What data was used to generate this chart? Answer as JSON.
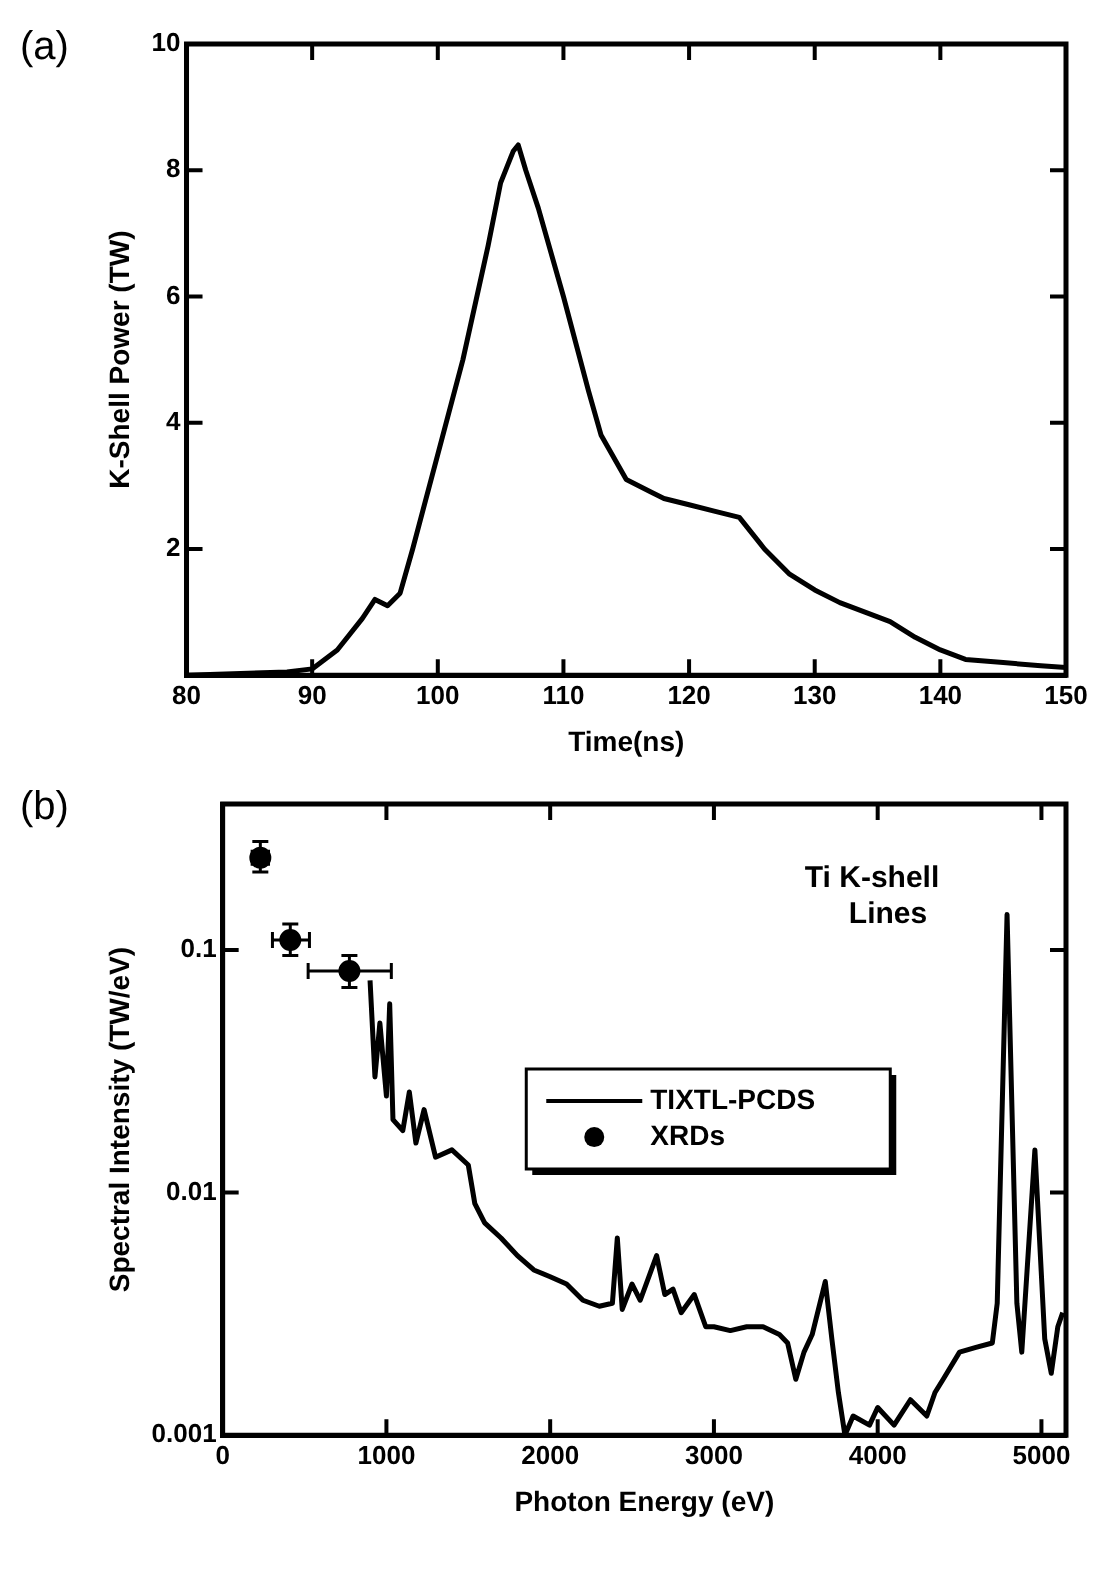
{
  "chart_data": [
    {
      "type": "line",
      "xlabel": "Time(ns)",
      "ylabel": "K-Shell Power (TW)",
      "annotations": [
        "(a)"
      ],
      "xlim": [
        80,
        150
      ],
      "xticks": [
        80,
        90,
        100,
        110,
        120,
        130,
        140,
        150
      ],
      "ylim": [
        0,
        10
      ],
      "yticks": [
        2,
        4,
        6,
        8,
        10
      ],
      "grid": false,
      "legend": false,
      "marker": "none",
      "line_style": "solid",
      "series": [
        {
          "color": "#000000",
          "x": [
            80,
            88,
            90,
            92,
            94,
            95,
            96,
            97,
            98,
            100,
            102,
            104,
            105,
            106,
            106.4,
            107,
            108,
            110,
            112,
            113,
            115,
            117,
            118,
            120,
            122,
            124,
            126,
            128,
            130,
            132,
            134,
            136,
            138,
            140,
            142,
            145,
            148,
            150
          ],
          "values": [
            0,
            0.05,
            0.1,
            0.4,
            0.9,
            1.2,
            1.1,
            1.3,
            2,
            3.5,
            5,
            6.8,
            7.8,
            8.3,
            8.4,
            8,
            7.4,
            6,
            4.5,
            3.8,
            3.1,
            2.9,
            2.8,
            2.7,
            2.6,
            2.5,
            2,
            1.6,
            1.35,
            1.15,
            1,
            0.85,
            0.6,
            0.4,
            0.25,
            0.2,
            0.15,
            0.12
          ]
        }
      ]
    },
    {
      "type": "line",
      "xlabel": "Photon Energy (eV)",
      "ylabel": "Spectral Intensity (TW/eV)",
      "annotations": [
        "(b)",
        "Ti K-shell Lines"
      ],
      "xlim": [
        0,
        5150
      ],
      "xticks": [
        0,
        1000,
        2000,
        3000,
        4000,
        5000
      ],
      "ylim": [
        0.001,
        0.4
      ],
      "yticks": [
        0.001,
        0.01,
        0.1
      ],
      "log": "y",
      "grid": false,
      "legend": "right",
      "series": [
        {
          "name": "TIXTL-PCDS",
          "type": "line",
          "marker": "none",
          "line_style": "solid",
          "color": "#000000",
          "x": [
            900,
            930,
            960,
            1000,
            1020,
            1040,
            1100,
            1140,
            1180,
            1230,
            1300,
            1400,
            1500,
            1540,
            1600,
            1700,
            1800,
            1900,
            2000,
            2100,
            2200,
            2300,
            2380,
            2410,
            2440,
            2500,
            2550,
            2650,
            2700,
            2750,
            2800,
            2880,
            2950,
            3000,
            3100,
            3200,
            3300,
            3400,
            3450,
            3500,
            3550,
            3600,
            3680,
            3720,
            3760,
            3800,
            3850,
            3950,
            4000,
            4100,
            4200,
            4300,
            4350,
            4400,
            4500,
            4600,
            4700,
            4730,
            4790,
            4850,
            4880,
            4960,
            5020,
            5060,
            5100,
            5130
          ],
          "values": [
            0.075,
            0.03,
            0.05,
            0.025,
            0.06,
            0.02,
            0.018,
            0.026,
            0.016,
            0.022,
            0.014,
            0.015,
            0.013,
            0.009,
            0.0075,
            0.0065,
            0.0055,
            0.0048,
            0.0045,
            0.0042,
            0.0036,
            0.0034,
            0.0035,
            0.0065,
            0.0033,
            0.0042,
            0.0036,
            0.0055,
            0.0038,
            0.004,
            0.0032,
            0.0038,
            0.0028,
            0.0028,
            0.0027,
            0.0028,
            0.0028,
            0.0026,
            0.0024,
            0.0017,
            0.0022,
            0.0026,
            0.0043,
            0.0025,
            0.0015,
            0.001,
            0.0012,
            0.0011,
            0.0013,
            0.0011,
            0.0014,
            0.0012,
            0.0015,
            0.0017,
            0.0022,
            0.0023,
            0.0024,
            0.0035,
            0.14,
            0.0035,
            0.0022,
            0.015,
            0.0025,
            0.0018,
            0.0028,
            0.0032
          ]
        },
        {
          "name": "XRDs",
          "type": "scatter",
          "marker": "circle",
          "color": "#000000",
          "x": [
            230,
            413,
            774
          ],
          "values": [
            0.24,
            0.11,
            0.082
          ],
          "errors": [
            [
              0.21,
              0.28
            ],
            [
              0.095,
              0.128
            ],
            [
              0.07,
              0.095
            ]
          ],
          "xerrors": [
            [
              180,
              280
            ],
            [
              304,
              530
            ],
            [
              522,
              1030
            ]
          ]
        }
      ]
    }
  ]
}
